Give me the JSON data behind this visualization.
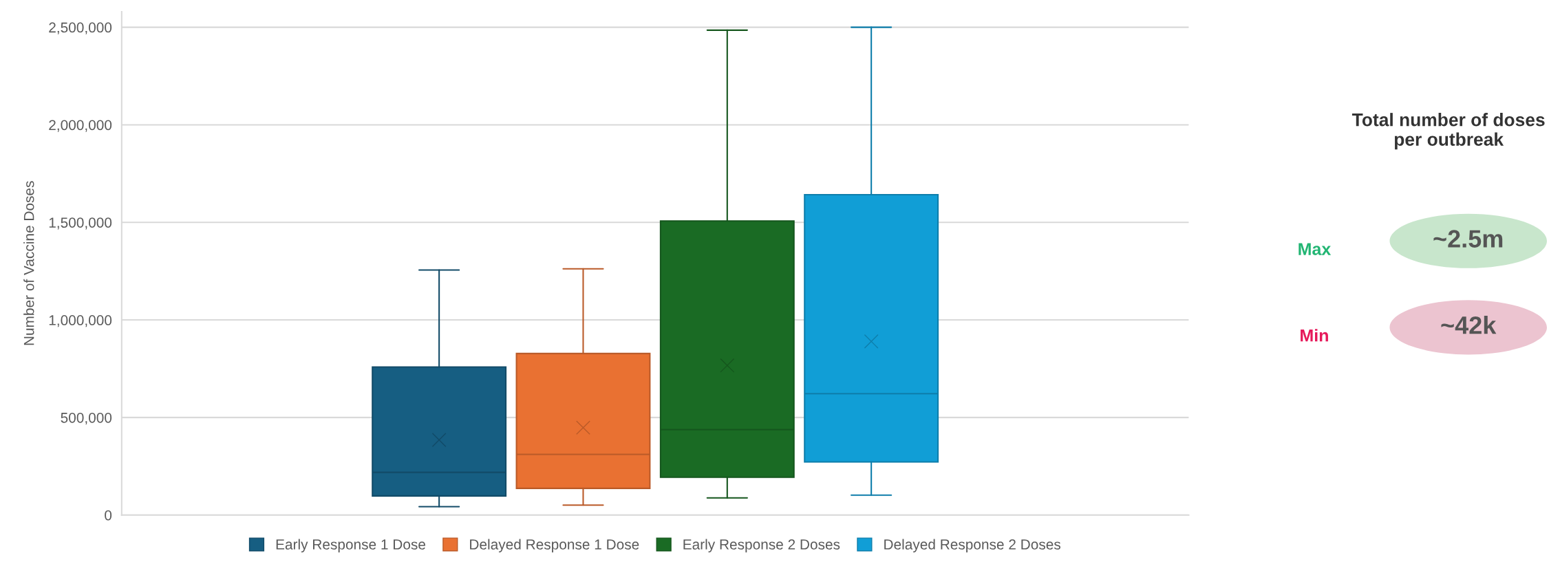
{
  "chart_data": [
    {
      "type": "box",
      "ylabel": "Number of Vaccine Doses",
      "categories": [
        null
      ],
      "grid": "y",
      "legend": "bottom",
      "marker": "cross",
      "ylim": [
        0,
        2580000
      ],
      "yticks": [
        {
          "value": 0,
          "label": "0"
        },
        {
          "value": 500000,
          "label": "500,000"
        },
        {
          "value": 1000000,
          "label": "1,000,000"
        },
        {
          "value": 1500000,
          "label": "1,500,000"
        },
        {
          "value": 2000000,
          "label": "2,000,000"
        },
        {
          "value": 2500000,
          "label": "2,500,000"
        }
      ],
      "series": [
        {
          "name": "Early Response 1 Dose",
          "color": "#165e82",
          "boxes": [
            {
              "low": 43000,
              "q1": 98000,
              "median": 219000,
              "q3": 759000,
              "high": 1256000,
              "mean": 385000
            }
          ]
        },
        {
          "name": "Delayed Response 1 Dose",
          "color": "#e97132",
          "boxes": [
            {
              "low": 51000,
              "q1": 137000,
              "median": 311000,
              "q3": 828000,
              "high": 1262000,
              "mean": 448000
            }
          ]
        },
        {
          "name": "Early Response 2 Doses",
          "color": "#1a6b24",
          "boxes": [
            {
              "low": 88000,
              "q1": 194000,
              "median": 438000,
              "q3": 1507000,
              "high": 2485000,
              "mean": 767000
            }
          ]
        },
        {
          "name": "Delayed Response 2 Doses",
          "color": "#119ed6",
          "boxes": [
            {
              "low": 102000,
              "q1": 272000,
              "median": 622000,
              "q3": 1642000,
              "high": 2500000,
              "mean": 890000
            }
          ]
        }
      ]
    },
    {
      "type": "other",
      "title": "Total number of doses per outbreak",
      "annotations": [
        "Max",
        "~2.5m",
        "Min",
        "~42k"
      ]
    }
  ]
}
